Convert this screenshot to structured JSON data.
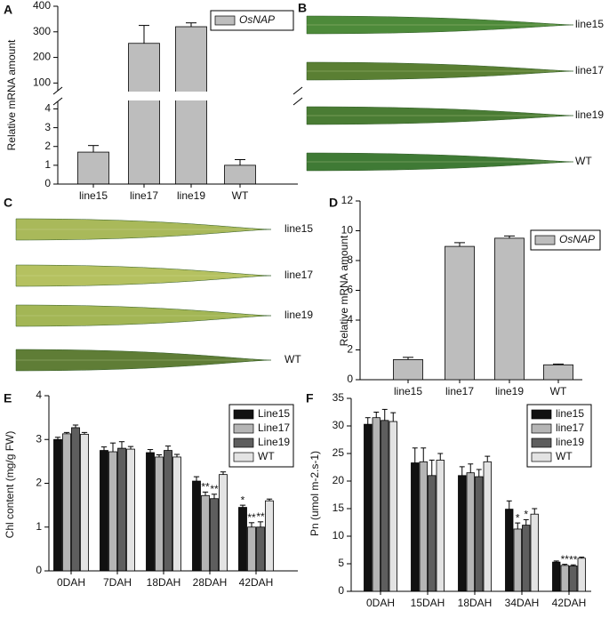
{
  "chart_data": [
    {
      "label": "A",
      "type": "bar",
      "ylabel": "Relative mRNA amount",
      "categories": [
        "line15",
        "line17",
        "line19",
        "WT"
      ],
      "series": [
        {
          "name": "OsNAP",
          "color": "#bdbdbd",
          "values": [
            1.7,
            255,
            320,
            1.0
          ],
          "errors": [
            0.35,
            70,
            15,
            0.3
          ]
        }
      ],
      "y_segments": [
        {
          "ylim": [
            0,
            4.4
          ],
          "yticks": [
            0,
            1,
            2,
            3,
            4
          ]
        },
        {
          "ylim": [
            70,
            400
          ],
          "yticks": [
            100,
            200,
            300,
            400
          ]
        }
      ],
      "legend": "upper right",
      "legend_italic": true
    },
    {
      "label": "B",
      "type": "image",
      "labels": [
        "line15",
        "line17",
        "line19",
        "WT"
      ]
    },
    {
      "label": "C",
      "type": "image",
      "labels": [
        "line15",
        "line17",
        "line19",
        "WT"
      ]
    },
    {
      "label": "D",
      "type": "bar",
      "ylabel": "Relative mRNA amount",
      "categories": [
        "line15",
        "line17",
        "line19",
        "WT"
      ],
      "series": [
        {
          "name": "OsNAP",
          "color": "#bdbdbd",
          "values": [
            1.35,
            8.95,
            9.5,
            1.0
          ],
          "errors": [
            0.15,
            0.25,
            0.15,
            0.05
          ]
        }
      ],
      "ylim": [
        0,
        12
      ],
      "yticks": [
        0,
        2,
        4,
        6,
        8,
        10,
        12
      ],
      "legend": "upper right",
      "legend_italic": true
    },
    {
      "label": "E",
      "type": "bar",
      "ylabel": "Chl content (mg/g FW)",
      "categories": [
        "0DAH",
        "7DAH",
        "18DAH",
        "28DAH",
        "42DAH"
      ],
      "series": [
        {
          "name": "Line15",
          "color": "#111111",
          "values": [
            3.0,
            2.75,
            2.7,
            2.05,
            1.45
          ],
          "errors": [
            0.05,
            0.08,
            0.07,
            0.1,
            0.05
          ],
          "significance": [
            null,
            null,
            null,
            null,
            "*"
          ]
        },
        {
          "name": "Line17",
          "color": "#b5b5b5",
          "values": [
            3.13,
            2.72,
            2.6,
            1.72,
            1.0
          ],
          "errors": [
            0.03,
            0.2,
            0.05,
            0.08,
            0.1
          ],
          "significance": [
            null,
            null,
            null,
            "**",
            "**"
          ]
        },
        {
          "name": "Line19",
          "color": "#5e5e5e",
          "values": [
            3.27,
            2.8,
            2.75,
            1.65,
            1.0
          ],
          "errors": [
            0.06,
            0.15,
            0.1,
            0.1,
            0.12
          ],
          "significance": [
            null,
            null,
            null,
            "**",
            "**"
          ]
        },
        {
          "name": "WT",
          "color": "#e3e3e3",
          "values": [
            3.12,
            2.78,
            2.6,
            2.2,
            1.6
          ],
          "errors": [
            0.04,
            0.06,
            0.06,
            0.06,
            0.04
          ],
          "significance": [
            null,
            null,
            null,
            null,
            null
          ]
        }
      ],
      "ylim": [
        0,
        4
      ],
      "yticks": [
        0,
        1,
        2,
        3,
        4
      ],
      "legend": "upper right",
      "legend_italic": false
    },
    {
      "label": "F",
      "type": "bar",
      "ylabel": "Pn (umol m-2.s-1)",
      "categories": [
        "0DAH",
        "15DAH",
        "18DAH",
        "34DAH",
        "42DAH"
      ],
      "series": [
        {
          "name": "line15",
          "color": "#111111",
          "values": [
            30.3,
            23.3,
            21,
            14.9,
            5.3
          ],
          "errors": [
            1.2,
            2.7,
            1.6,
            1.5,
            0.2
          ],
          "significance": [
            null,
            null,
            null,
            null,
            null
          ]
        },
        {
          "name": "line17",
          "color": "#b5b5b5",
          "values": [
            31.5,
            23.5,
            21.5,
            11.3,
            4.7
          ],
          "errors": [
            1.0,
            2.5,
            1.6,
            1.1,
            0.2
          ],
          "significance": [
            null,
            null,
            null,
            "*",
            "**"
          ]
        },
        {
          "name": "line19",
          "color": "#5e5e5e",
          "values": [
            31,
            21,
            20.8,
            12,
            4.6
          ],
          "errors": [
            2.0,
            2.8,
            1.3,
            1.0,
            0.2
          ],
          "significance": [
            null,
            null,
            null,
            "*",
            "**"
          ]
        },
        {
          "name": "WT",
          "color": "#e3e3e3",
          "values": [
            30.8,
            23.8,
            23.5,
            14,
            6
          ],
          "errors": [
            1.6,
            1.2,
            1.0,
            1.0,
            0.2
          ],
          "significance": [
            null,
            null,
            null,
            null,
            null
          ]
        }
      ],
      "ylim": [
        0,
        35
      ],
      "yticks": [
        0,
        5,
        10,
        15,
        20,
        25,
        30,
        35
      ],
      "legend": "upper right",
      "legend_italic": false
    }
  ]
}
